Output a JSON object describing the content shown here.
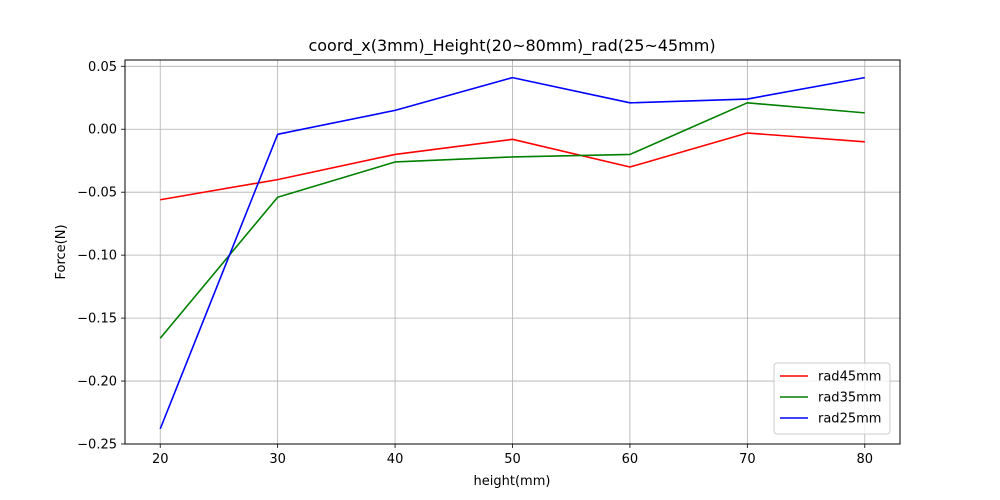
{
  "chart_data": {
    "type": "line",
    "title": "coord_x(3mm)_Height(20~80mm)_rad(25~45mm)",
    "xlabel": "height(mm)",
    "ylabel": "Force(N)",
    "x": [
      20,
      30,
      40,
      50,
      60,
      70,
      80
    ],
    "xlim": [
      17,
      83
    ],
    "ylim": [
      -0.25,
      0.055
    ],
    "xticks": [
      "20",
      "30",
      "40",
      "50",
      "60",
      "70",
      "80"
    ],
    "yticks": [
      "0.05",
      "0.00",
      "−0.05",
      "−0.10",
      "−0.15",
      "−0.20",
      "−0.25"
    ],
    "ytick_values": [
      0.05,
      0.0,
      -0.05,
      -0.1,
      -0.15,
      -0.2,
      -0.25
    ],
    "grid": true,
    "legend_position": "lower-right",
    "series": [
      {
        "name": "rad45mm",
        "color": "#ff0000",
        "values": [
          -0.056,
          -0.04,
          -0.02,
          -0.008,
          -0.03,
          -0.003,
          -0.01
        ]
      },
      {
        "name": "rad35mm",
        "color": "#008000",
        "values": [
          -0.166,
          -0.054,
          -0.026,
          -0.022,
          -0.02,
          0.021,
          0.013
        ]
      },
      {
        "name": "rad25mm",
        "color": "#0000ff",
        "values": [
          -0.238,
          -0.004,
          0.015,
          0.041,
          0.021,
          0.024,
          0.041
        ]
      }
    ]
  }
}
